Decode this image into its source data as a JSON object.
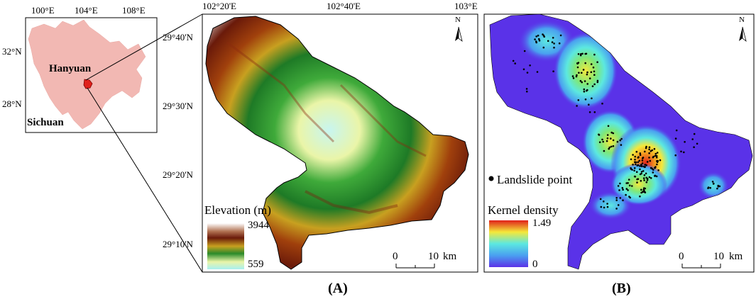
{
  "inset": {
    "lon_ticks": [
      "100°E",
      "104°E",
      "108°E"
    ],
    "lat_ticks": [
      "32°N",
      "28°N"
    ],
    "place_hanyuan": "Hanyuan",
    "place_sichuan": "Sichuan"
  },
  "panel_a": {
    "lon_ticks": [
      "102°20'E",
      "102°40'E",
      "103°E"
    ],
    "lat_ticks": [
      "29°40'N",
      "29°30'N",
      "29°20'N",
      "29°10'N"
    ],
    "legend_title": "Elevation (m)",
    "legend_max": "3944",
    "legend_min": "559",
    "scale_zero": "0",
    "scale_ten": "10",
    "scale_unit": "km",
    "north": "N",
    "label": "(A)"
  },
  "panel_b": {
    "points_legend": "Landslide point",
    "density_title": "Kernel density",
    "density_max": "1.49",
    "density_min": "0",
    "scale_zero": "0",
    "scale_ten": "10",
    "scale_unit": "km",
    "north": "N",
    "label": "(B)"
  },
  "colors": {
    "sichuan_fill": "#f2b8b3",
    "hanyuan_fill": "#e0211b",
    "background_b": "#5a32e8"
  }
}
